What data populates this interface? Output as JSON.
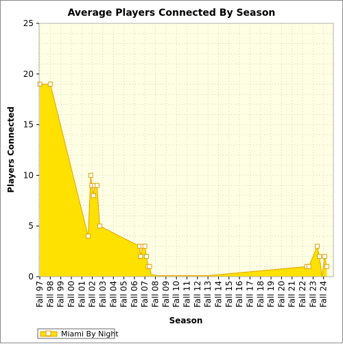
{
  "chart_data": {
    "type": "area",
    "title": "Average Players Connected By Season",
    "xlabel": "Season",
    "ylabel": "Players Connected",
    "ylim": [
      0,
      25
    ],
    "yticks": [
      0,
      5,
      10,
      15,
      20,
      25
    ],
    "grid": true,
    "legend_position": "bottom-left",
    "categories": [
      "Fall 97",
      "Fall 98",
      "Fall 99",
      "Fall 00",
      "Fall 01",
      "Fall 02",
      "Fall 03",
      "Fall 04",
      "Fall 05",
      "Fall 06",
      "Fall 07",
      "Fall 08",
      "Fall 09",
      "Fall 10",
      "Fall 11",
      "Fall 12",
      "Fall 13",
      "Fall 14",
      "Fall 15",
      "Fall 16",
      "Fall 17",
      "Fall 18",
      "Fall 19",
      "Fall 20",
      "Fall 21",
      "Fall 22",
      "Fall 23",
      "Fall 24"
    ],
    "series": [
      {
        "name": "Miami By Night",
        "fill_color": "#FFE100",
        "line_color": "#DFA000",
        "points": [
          {
            "x": 0.0,
            "y": 19
          },
          {
            "x": 1.0,
            "y": 19
          },
          {
            "x": 4.6,
            "y": 4
          },
          {
            "x": 4.85,
            "y": 10
          },
          {
            "x": 4.95,
            "y": 9
          },
          {
            "x": 5.1,
            "y": 8
          },
          {
            "x": 5.2,
            "y": 9
          },
          {
            "x": 5.45,
            "y": 9
          },
          {
            "x": 5.7,
            "y": 5
          },
          {
            "x": 9.5,
            "y": 3
          },
          {
            "x": 9.6,
            "y": 2
          },
          {
            "x": 9.8,
            "y": 3
          },
          {
            "x": 10.0,
            "y": 3
          },
          {
            "x": 10.15,
            "y": 2
          },
          {
            "x": 10.3,
            "y": 1
          },
          {
            "x": 10.45,
            "y": 1
          },
          {
            "x": 10.6,
            "y": 0.2
          },
          {
            "x": 11.2,
            "y": 0.1
          },
          {
            "x": 16.0,
            "y": 0.1
          },
          {
            "x": 25.4,
            "y": 1
          },
          {
            "x": 25.6,
            "y": 1
          },
          {
            "x": 26.4,
            "y": 3
          },
          {
            "x": 26.6,
            "y": 2
          },
          {
            "x": 26.85,
            "y": 0
          },
          {
            "x": 27.1,
            "y": 2
          },
          {
            "x": 27.3,
            "y": 1
          }
        ],
        "markers": [
          {
            "x": 0.0,
            "y": 19
          },
          {
            "x": 1.0,
            "y": 19
          },
          {
            "x": 4.6,
            "y": 4
          },
          {
            "x": 4.85,
            "y": 10
          },
          {
            "x": 4.95,
            "y": 9
          },
          {
            "x": 5.1,
            "y": 8
          },
          {
            "x": 5.2,
            "y": 9
          },
          {
            "x": 5.45,
            "y": 9
          },
          {
            "x": 5.7,
            "y": 5
          },
          {
            "x": 9.5,
            "y": 3
          },
          {
            "x": 9.6,
            "y": 2
          },
          {
            "x": 9.8,
            "y": 3
          },
          {
            "x": 10.0,
            "y": 3
          },
          {
            "x": 10.15,
            "y": 2
          },
          {
            "x": 10.3,
            "y": 1
          },
          {
            "x": 10.45,
            "y": 1
          },
          {
            "x": 25.4,
            "y": 1
          },
          {
            "x": 25.6,
            "y": 1
          },
          {
            "x": 26.4,
            "y": 3
          },
          {
            "x": 26.6,
            "y": 2
          },
          {
            "x": 27.1,
            "y": 2
          },
          {
            "x": 27.3,
            "y": 1
          }
        ]
      }
    ]
  }
}
